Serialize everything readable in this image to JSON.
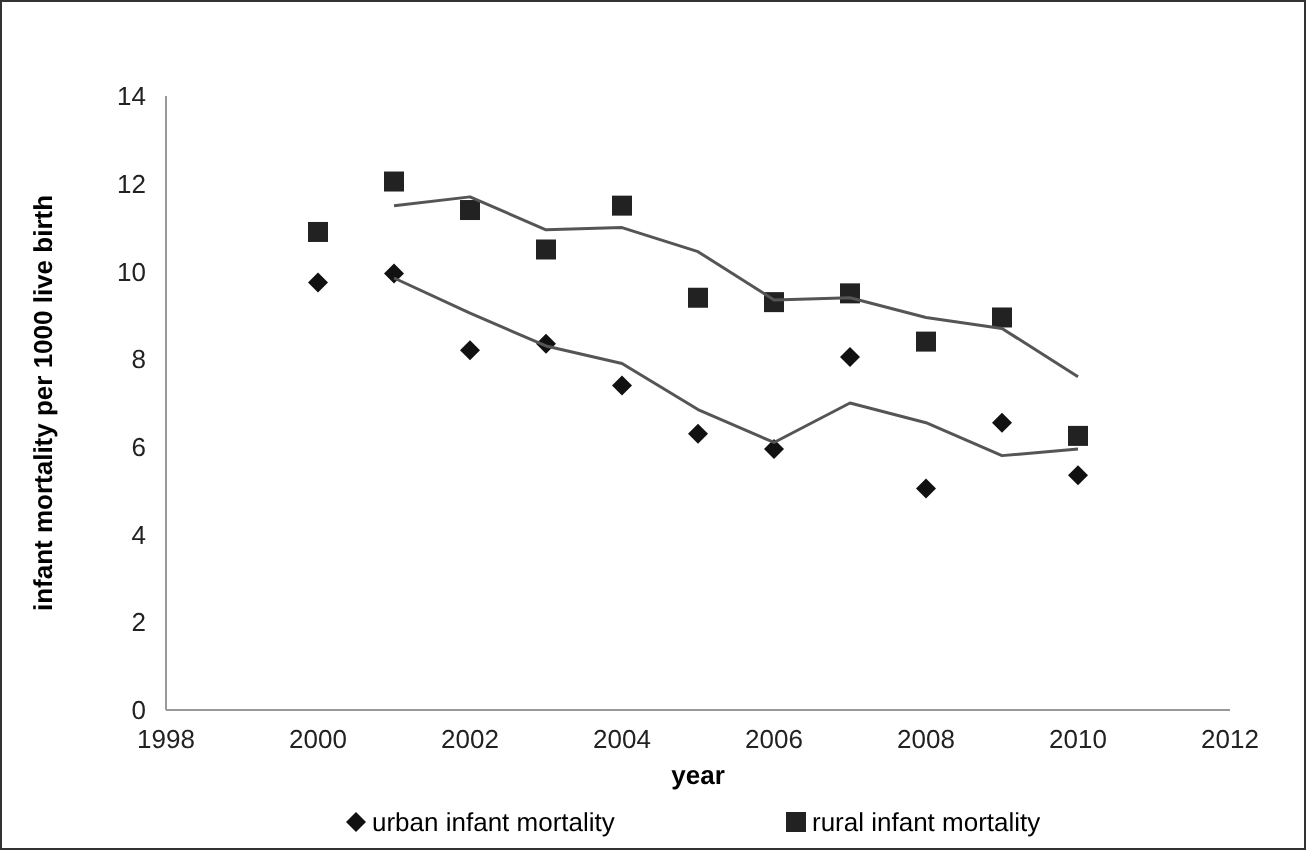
{
  "chart_data": {
    "type": "scatter",
    "xlabel": "year",
    "ylabel": "infant mortality per 1000 live birth",
    "xlim": [
      1998,
      2012
    ],
    "xticks": [
      1998,
      2000,
      2002,
      2004,
      2006,
      2008,
      2010,
      2012
    ],
    "ylim": [
      0,
      14
    ],
    "yticks": [
      0,
      2,
      4,
      6,
      8,
      10,
      12,
      14
    ],
    "grid": false,
    "legend": "bottom",
    "series": [
      {
        "name": "urban infant mortality",
        "marker": "diamond",
        "color": "#111111",
        "x": [
          2000,
          2001,
          2002,
          2003,
          2004,
          2005,
          2006,
          2007,
          2008,
          2009,
          2010
        ],
        "values": [
          9.75,
          9.95,
          8.2,
          8.35,
          7.4,
          6.3,
          5.95,
          8.05,
          5.05,
          6.55,
          5.35
        ]
      },
      {
        "name": "rural infant mortality",
        "marker": "square",
        "color": "#222222",
        "x": [
          2000,
          2001,
          2002,
          2003,
          2004,
          2005,
          2006,
          2007,
          2008,
          2009,
          2010
        ],
        "values": [
          10.9,
          12.05,
          11.4,
          10.5,
          11.5,
          9.4,
          9.3,
          9.5,
          8.4,
          8.95,
          6.25
        ]
      },
      {
        "type": "line",
        "marker": "none",
        "color": "#555555",
        "x": [
          2001,
          2002,
          2003,
          2004,
          2005,
          2006,
          2007,
          2008,
          2009,
          2010
        ],
        "values": [
          9.85,
          9.05,
          8.3,
          7.9,
          6.85,
          6.1,
          7.0,
          6.55,
          5.8,
          5.95
        ]
      },
      {
        "type": "line",
        "marker": "none",
        "color": "#555555",
        "x": [
          2001,
          2002,
          2003,
          2004,
          2005,
          2006,
          2007,
          2008,
          2009,
          2010
        ],
        "values": [
          11.5,
          11.7,
          10.95,
          11.0,
          10.45,
          9.35,
          9.4,
          8.95,
          8.7,
          7.6
        ]
      }
    ]
  }
}
